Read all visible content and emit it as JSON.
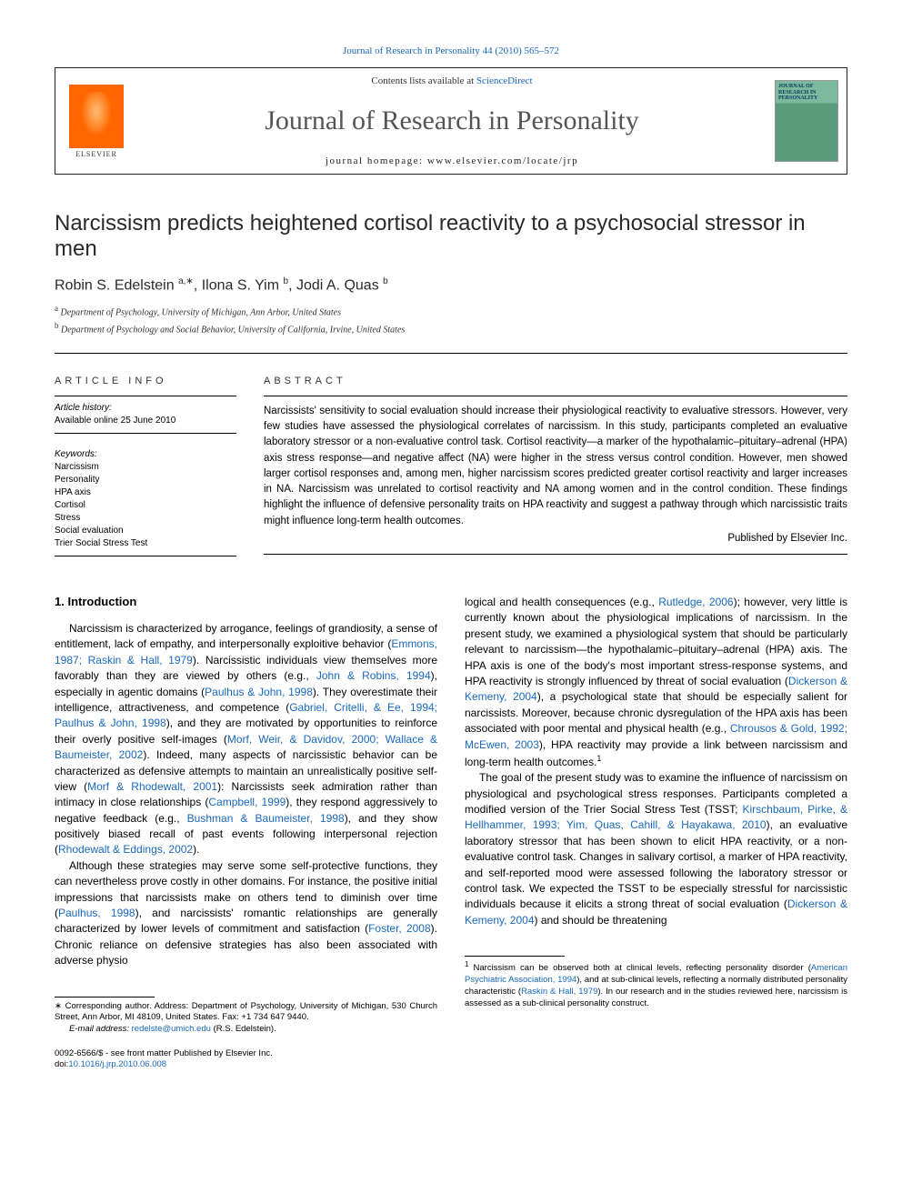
{
  "citation": "Journal of Research in Personality 44 (2010) 565–572",
  "contents_prefix": "Contents lists available at ",
  "contents_link": "ScienceDirect",
  "journal_name": "Journal of Research in Personality",
  "homepage_label": "journal homepage: www.elsevier.com/locate/jrp",
  "elsevier_label": "ELSEVIER",
  "cover_text": "JOURNAL OF RESEARCH IN PERSONALITY",
  "article": {
    "title": "Narcissism predicts heightened cortisol reactivity to a psychosocial stressor in men",
    "authors_html": "Robin S. Edelstein <sup>a,∗</sup>, Ilona S. Yim <sup>b</sup>, Jodi A. Quas <sup>b</sup>",
    "affiliations": {
      "a": "Department of Psychology, University of Michigan, Ann Arbor, United States",
      "b": "Department of Psychology and Social Behavior, University of California, Irvine, United States"
    }
  },
  "info": {
    "label_article_info": "article info",
    "history_label": "Article history:",
    "history_value": "Available online 25 June 2010",
    "keywords_label": "Keywords:",
    "keywords": [
      "Narcissism",
      "Personality",
      "HPA axis",
      "Cortisol",
      "Stress",
      "Social evaluation",
      "Trier Social Stress Test"
    ]
  },
  "abstract": {
    "label": "abstract",
    "text": "Narcissists' sensitivity to social evaluation should increase their physiological reactivity to evaluative stressors. However, very few studies have assessed the physiological correlates of narcissism. In this study, participants completed an evaluative laboratory stressor or a non-evaluative control task. Cortisol reactivity—a marker of the hypothalamic–pituitary–adrenal (HPA) axis stress response—and negative affect (NA) were higher in the stress versus control condition. However, men showed larger cortisol responses and, among men, higher narcissism scores predicted greater cortisol reactivity and larger increases in NA. Narcissism was unrelated to cortisol reactivity and NA among women and in the control condition. These findings highlight the influence of defensive personality traits on HPA reactivity and suggest a pathway through which narcissistic traits might influence long-term health outcomes.",
    "published_by": "Published by Elsevier Inc."
  },
  "section1": {
    "heading": "1. Introduction",
    "p1_parts": {
      "t1": "Narcissism is characterized by arrogance, feelings of grandiosity, a sense of entitlement, lack of empathy, and interpersonally exploitive behavior (",
      "c1": "Emmons, 1987; Raskin & Hall, 1979",
      "t2": "). Narcissistic individuals view themselves more favorably than they are viewed by others (e.g., ",
      "c2": "John & Robins, 1994",
      "t3": "), especially in agentic domains (",
      "c3": "Paulhus & John, 1998",
      "t4": "). They overestimate their intelligence, attractiveness, and competence (",
      "c4": "Gabriel, Critelli, & Ee, 1994; Paulhus & John, 1998",
      "t5": "), and they are motivated by opportunities to reinforce their overly positive self-images (",
      "c5": "Morf, Weir, & Davidov, 2000; Wallace & Baumeister, 2002",
      "t6": "). Indeed, many aspects of narcissistic behavior can be characterized as defensive attempts to maintain an unrealistically positive self-view (",
      "c6": "Morf & Rhodewalt, 2001",
      "t7": "): Narcissists seek admiration rather than intimacy in close relationships (",
      "c7": "Campbell, 1999",
      "t8": "), they respond aggressively to negative feedback (e.g., ",
      "c8": "Bushman & Baumeister, 1998",
      "t9": "), and they show positively biased recall of past events following interpersonal rejection (",
      "c9": "Rhodewalt & Eddings, 2002",
      "t10": ")."
    },
    "p2_parts": {
      "t1": "Although these strategies may serve some self-protective functions, they can nevertheless prove costly in other domains. For instance, the positive initial impressions that narcissists make on others tend to diminish over time (",
      "c1": "Paulhus, 1998",
      "t2": "), and narcissists' romantic relationships are generally characterized by lower levels of commitment and satisfaction (",
      "c2": "Foster, 2008",
      "t3": "). Chronic reliance on defensive strategies has also been associated with adverse physio"
    },
    "p2b_parts": {
      "t0": "logical and health consequences (e.g., ",
      "c0": "Rutledge, 2006",
      "t1": "); however, very little is currently known about the physiological implications of narcissism. In the present study, we examined a physiological system that should be particularly relevant to narcissism—the hypothalamic–pituitary–adrenal (HPA) axis. The HPA axis is one of the body's most important stress-response systems, and HPA reactivity is strongly influenced by threat of social evaluation (",
      "c1": "Dickerson & Kemeny, 2004",
      "t2": "), a psychological state that should be especially salient for narcissists. Moreover, because chronic dysregulation of the HPA axis has been associated with poor mental and physical health (e.g., ",
      "c2": "Chrousos & Gold, 1992; McEwen, 2003",
      "t3": "), HPA reactivity may provide a link between narcissism and long-term health outcomes."
    },
    "p3_parts": {
      "t1": "The goal of the present study was to examine the influence of narcissism on physiological and psychological stress responses. Participants completed a modified version of the Trier Social Stress Test (TSST; ",
      "c1": "Kirschbaum, Pirke, & Hellhammer, 1993; Yim, Quas, Cahill, & Hayakawa, 2010",
      "t2": "), an evaluative laboratory stressor that has been shown to elicit HPA reactivity, or a non-evaluative control task. Changes in salivary cortisol, a marker of HPA reactivity, and self-reported mood were assessed following the laboratory stressor or control task. We expected the TSST to be especially stressful for narcissistic individuals because it elicits a strong threat of social evaluation (",
      "c2": "Dickerson & Kemeny, 2004",
      "t3": ") and should be threatening"
    }
  },
  "footnotes": {
    "corr": {
      "symbol": "∗",
      "text": "Corresponding author. Address: Department of Psychology, University of Michigan, 530 Church Street, Ann Arbor, MI 48109, United States. Fax: +1 734 647 9440."
    },
    "email_label": "E-mail address:",
    "email": "redelste@umich.edu",
    "email_paren": "(R.S. Edelstein).",
    "fn1": {
      "symbol": "1",
      "t1": "Narcissism can be observed both at clinical levels, reflecting personality disorder (",
      "c1": "American Psychiatric Association, 1994",
      "t2": "), and at sub-clinical levels, reflecting a normally distributed personality characteristic (",
      "c2": "Raskin & Hall, 1979",
      "t3": "). In our research and in the studies reviewed here, narcissism is assessed as a sub-clinical personality construct."
    }
  },
  "doi": {
    "line1": "0092-6566/$ - see front matter Published by Elsevier Inc.",
    "line2_pre": "doi:",
    "line2_link": "10.1016/j.jrp.2010.06.008"
  },
  "colors": {
    "link": "#1968bd",
    "elsevier_orange": "#ff6600",
    "cover_green_top": "#7bb89e",
    "cover_green_bottom": "#5a9b7c",
    "text": "#000000"
  }
}
